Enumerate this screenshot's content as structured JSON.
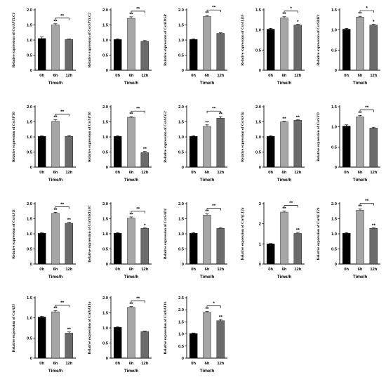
{
  "chart_data": [
    {
      "type": "bar",
      "gene": "CsrSPTLC1",
      "ylabel_prefix": "Relative expression of ",
      "categories": [
        "0h",
        "6h",
        "12h"
      ],
      "values": [
        1.05,
        1.5,
        1.02
      ],
      "errors": [
        0.05,
        0.04,
        0.02
      ],
      "ylim": [
        0,
        2.0
      ],
      "yticks": [
        "0",
        "0.5",
        "1.0",
        "1.5",
        "2.0"
      ],
      "xlabel": "Time/h",
      "bar_labels": [
        "",
        "**",
        ""
      ],
      "bracket": {
        "from": 1,
        "to": 2,
        "label": "**"
      }
    },
    {
      "type": "bar",
      "gene": "CsrSPTLC2",
      "ylabel_prefix": "Relative expression of ",
      "categories": [
        "0h",
        "6h",
        "12h"
      ],
      "values": [
        1.02,
        1.72,
        0.96
      ],
      "errors": [
        0.02,
        0.05,
        0.02
      ],
      "ylim": [
        0,
        2.0
      ],
      "yticks": [
        "0",
        "0.5",
        "1.0",
        "1.5",
        "2.0"
      ],
      "xlabel": "Time/h",
      "bar_labels": [
        "",
        "**",
        ""
      ],
      "bracket": {
        "from": 1,
        "to": 2,
        "label": "**"
      }
    },
    {
      "type": "bar",
      "gene": "CsrKDSR",
      "ylabel_prefix": "Relative expression of ",
      "categories": [
        "0h",
        "6h",
        "12h"
      ],
      "values": [
        1.02,
        1.78,
        1.22
      ],
      "errors": [
        0.02,
        0.03,
        0.02
      ],
      "ylim": [
        0,
        2.0
      ],
      "yticks": [
        "0",
        "0.5",
        "1.0",
        "1.5",
        "2.0"
      ],
      "xlabel": "Time/h",
      "bar_labels": [
        "",
        "**",
        ""
      ],
      "bracket": {
        "from": 1,
        "to": 2,
        "label": "**"
      }
    },
    {
      "type": "bar",
      "gene": "CsrALDS",
      "ylabel_prefix": "Relative expression of ",
      "categories": [
        "0h",
        "6h",
        "12h"
      ],
      "values": [
        1.02,
        1.3,
        1.12
      ],
      "errors": [
        0.02,
        0.03,
        0.02
      ],
      "ylim": [
        0,
        1.5
      ],
      "yticks": [
        "0",
        "0.5",
        "1.0",
        "1.5"
      ],
      "xlabel": "Time/h",
      "bar_labels": [
        "",
        "**",
        "*"
      ],
      "bracket": {
        "from": 1,
        "to": 2,
        "label": "*"
      }
    },
    {
      "type": "bar",
      "gene": "CsrSBH1",
      "ylabel_prefix": "Relative expression of ",
      "categories": [
        "0h",
        "6h",
        "12h"
      ],
      "values": [
        1.02,
        1.32,
        1.12
      ],
      "errors": [
        0.02,
        0.02,
        0.02
      ],
      "ylim": [
        0,
        1.5
      ],
      "yticks": [
        "0",
        "0.5",
        "1.0",
        "1.5"
      ],
      "xlabel": "Time/h",
      "bar_labels": [
        "",
        "**",
        "*"
      ],
      "bracket": {
        "from": 1,
        "to": 2,
        "label": "*"
      }
    },
    {
      "type": "bar",
      "gene": "CsrSPT6",
      "ylabel_prefix": "Relative expression of ",
      "categories": [
        "0h",
        "6h",
        "12h"
      ],
      "values": [
        1.02,
        1.52,
        1.02
      ],
      "errors": [
        0.02,
        0.05,
        0.03
      ],
      "ylim": [
        0,
        2.0
      ],
      "yticks": [
        "0",
        "0.5",
        "1.0",
        "1.5",
        "2.0"
      ],
      "xlabel": "Time/h",
      "bar_labels": [
        "",
        "**",
        ""
      ],
      "bracket": {
        "from": 1,
        "to": 2,
        "label": "**"
      }
    },
    {
      "type": "bar",
      "gene": "CsrSPT6",
      "ylabel_prefix": "Relative expression of ",
      "categories": [
        "0h",
        "6h",
        "12h"
      ],
      "values": [
        1.02,
        1.65,
        0.48
      ],
      "errors": [
        0.02,
        0.02,
        0.04
      ],
      "ylim": [
        0,
        2.0
      ],
      "yticks": [
        "0",
        "0.5",
        "1.0",
        "1.5",
        "2.0"
      ],
      "xlabel": "Time/h",
      "bar_labels": [
        "",
        "**",
        "**"
      ],
      "bracket": {
        "from": 1,
        "to": 2,
        "label": "**"
      }
    },
    {
      "type": "bar",
      "gene": "CsrACG2",
      "ylabel_prefix": "Relative expression of ",
      "categories": [
        "0h",
        "6h",
        "12h"
      ],
      "values": [
        1.02,
        1.35,
        1.62
      ],
      "errors": [
        0.02,
        0.05,
        0.05
      ],
      "ylim": [
        0,
        2.0
      ],
      "yticks": [
        "0",
        "0.5",
        "1.0",
        "1.5",
        "2.0"
      ],
      "xlabel": "Time/h",
      "bar_labels": [
        "",
        "**",
        "**"
      ],
      "bracket": {
        "from": 1,
        "to": 2,
        "label": "**"
      }
    },
    {
      "type": "bar",
      "gene": "CsrASTa",
      "ylabel_prefix": "Relative expression of ",
      "categories": [
        "0h",
        "6h",
        "12h"
      ],
      "values": [
        1.02,
        1.5,
        1.55
      ],
      "errors": [
        0.02,
        0.02,
        0.02
      ],
      "ylim": [
        0,
        2.0
      ],
      "yticks": [
        "0",
        "0.5",
        "1.0",
        "1.5",
        "2.0"
      ],
      "xlabel": "Time/h",
      "bar_labels": [
        "",
        "**",
        "**"
      ],
      "bracket": null
    },
    {
      "type": "bar",
      "gene": "CsrSYD",
      "ylabel_prefix": "Relative expression of ",
      "categories": [
        "0h",
        "6h",
        "12h"
      ],
      "values": [
        1.02,
        1.25,
        0.97
      ],
      "errors": [
        0.03,
        0.03,
        0.02
      ],
      "ylim": [
        0,
        1.5
      ],
      "yticks": [
        "0",
        "0.5",
        "1.0",
        "1.5"
      ],
      "xlabel": "Time/h",
      "bar_labels": [
        "",
        "**",
        ""
      ],
      "bracket": {
        "from": 1,
        "to": 2,
        "label": "**"
      }
    },
    {
      "type": "bar",
      "gene": "CsrASTc",
      "ylabel_prefix": "Relative expression of ",
      "categories": [
        "0h",
        "6h",
        "12h"
      ],
      "values": [
        1.02,
        1.68,
        1.35
      ],
      "errors": [
        0.02,
        0.03,
        0.03
      ],
      "ylim": [
        0,
        2.0
      ],
      "yticks": [
        "0",
        "0.5",
        "1.0",
        "1.5",
        "2.0"
      ],
      "xlabel": "Time/h",
      "bar_labels": [
        "",
        "**",
        "**"
      ],
      "bracket": {
        "from": 1,
        "to": 2,
        "label": "**"
      }
    },
    {
      "type": "bar",
      "gene": "CsrYER153C",
      "ylabel_prefix": "Relative expression of ",
      "categories": [
        "0h",
        "6h",
        "12h"
      ],
      "values": [
        1.02,
        1.52,
        1.18
      ],
      "errors": [
        0.02,
        0.04,
        0.02
      ],
      "ylim": [
        0,
        2.0
      ],
      "yticks": [
        "0",
        "0.5",
        "1.0",
        "1.5",
        "2.0"
      ],
      "xlabel": "Time/h",
      "bar_labels": [
        "",
        "**",
        "*"
      ],
      "bracket": {
        "from": 1,
        "to": 2,
        "label": "**"
      }
    },
    {
      "type": "bar",
      "gene": "CsrSAD1",
      "ylabel_prefix": "Relative expression of ",
      "categories": [
        "0h",
        "6h",
        "12h"
      ],
      "values": [
        1.02,
        1.62,
        1.18
      ],
      "errors": [
        0.02,
        0.04,
        0.02
      ],
      "ylim": [
        0,
        2.0
      ],
      "yticks": [
        "0",
        "0.5",
        "1.0",
        "1.5",
        "2.0"
      ],
      "xlabel": "Time/h",
      "bar_labels": [
        "",
        "**",
        ""
      ],
      "bracket": {
        "from": 1,
        "to": 2,
        "label": "**"
      }
    },
    {
      "type": "bar",
      "gene": "CsrALT2a",
      "ylabel_prefix": "Relative expression of ",
      "categories": [
        "0h",
        "6h",
        "12h"
      ],
      "values": [
        1.0,
        2.58,
        1.52
      ],
      "errors": [
        0.02,
        0.05,
        0.05
      ],
      "ylim": [
        0,
        3
      ],
      "yticks": [
        "0",
        "1",
        "2",
        "3"
      ],
      "xlabel": "Time/h",
      "bar_labels": [
        "",
        "**",
        "**"
      ],
      "bracket": {
        "from": 1,
        "to": 2,
        "label": "**"
      }
    },
    {
      "type": "bar",
      "gene": "CsrALT2b",
      "ylabel_prefix": "Relative expression of ",
      "categories": [
        "0h",
        "6h",
        "12h"
      ],
      "values": [
        1.02,
        1.78,
        1.18
      ],
      "errors": [
        0.02,
        0.04,
        0.02
      ],
      "ylim": [
        0,
        2.0
      ],
      "yticks": [
        "0",
        "0.5",
        "1.0",
        "1.5",
        "2.0"
      ],
      "xlabel": "Time/h",
      "bar_labels": [
        "",
        "**",
        "**"
      ],
      "bracket": {
        "from": 1,
        "to": 2,
        "label": "**"
      }
    },
    {
      "type": "bar",
      "gene": "CsrAT1",
      "ylabel_prefix": "Relative expression of ",
      "categories": [
        "0h",
        "6h",
        "12h"
      ],
      "values": [
        1.02,
        1.15,
        0.62
      ],
      "errors": [
        0.02,
        0.03,
        0.03
      ],
      "ylim": [
        0,
        1.5
      ],
      "yticks": [
        "0",
        "0.5",
        "1.0",
        "1.5"
      ],
      "xlabel": "Time/h",
      "bar_labels": [
        "",
        "**",
        "**"
      ],
      "bracket": {
        "from": 1,
        "to": 2,
        "label": "**"
      }
    },
    {
      "type": "bar",
      "gene": "CsrKAT1a",
      "ylabel_prefix": "Relative expression of ",
      "categories": [
        "0h",
        "6h",
        "12h"
      ],
      "values": [
        1.02,
        1.68,
        0.88
      ],
      "errors": [
        0.02,
        0.03,
        0.02
      ],
      "ylim": [
        0,
        2.0
      ],
      "yticks": [
        "0",
        "0.5",
        "1.0",
        "1.5",
        "2.0"
      ],
      "xlabel": "Time/h",
      "bar_labels": [
        "",
        "**",
        ""
      ],
      "bracket": {
        "from": 1,
        "to": 2,
        "label": "**"
      }
    },
    {
      "type": "bar",
      "gene": "CsrKAT1b",
      "ylabel_prefix": "Relative expression of ",
      "categories": [
        "0h",
        "6h",
        "12h"
      ],
      "values": [
        1.02,
        1.9,
        1.55
      ],
      "errors": [
        0.02,
        0.03,
        0.05
      ],
      "ylim": [
        0,
        2.5
      ],
      "yticks": [
        "0",
        "0.5",
        "1.0",
        "1.5",
        "2.0",
        "2.5"
      ],
      "xlabel": "Time/h",
      "bar_labels": [
        "",
        "**",
        "**"
      ],
      "bracket": {
        "from": 1,
        "to": 2,
        "label": "*"
      }
    }
  ],
  "bar_colors": [
    "#000000",
    "#a6a6a6",
    "#6b6b6b"
  ]
}
